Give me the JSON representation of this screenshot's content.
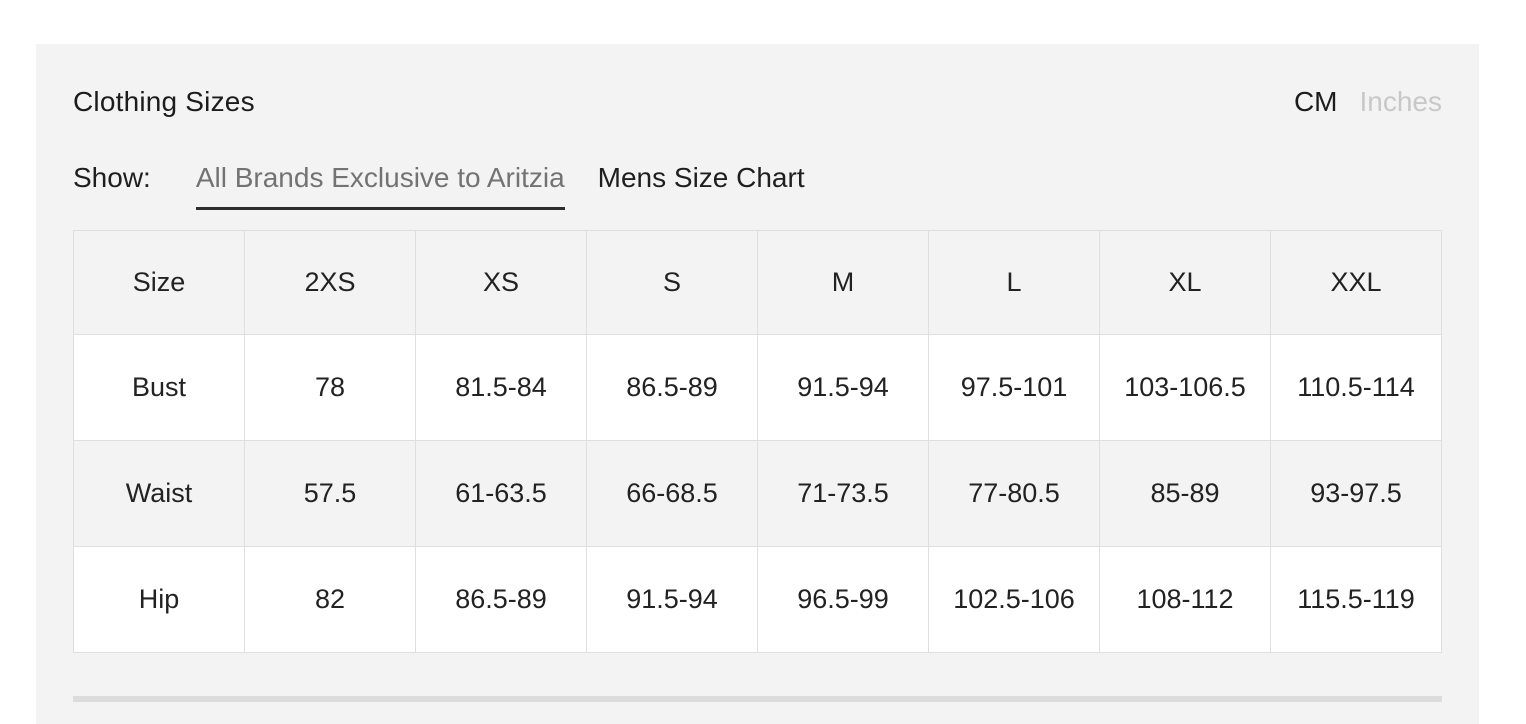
{
  "panel": {
    "title": "Clothing Sizes",
    "units": {
      "cm_label": "CM",
      "inches_label": "Inches",
      "selected": "CM"
    },
    "show_label": "Show:",
    "tabs": [
      {
        "label": "All Brands Exclusive to Aritzia",
        "active": true
      },
      {
        "label": "Mens Size Chart",
        "active": false
      }
    ]
  },
  "table": {
    "headers": [
      "Size",
      "2XS",
      "XS",
      "S",
      "M",
      "L",
      "XL",
      "XXL"
    ],
    "rows": [
      {
        "label": "Bust",
        "values": [
          "78",
          "81.5-84",
          "86.5-89",
          "91.5-94",
          "97.5-101",
          "103-106.5",
          "110.5-114"
        ]
      },
      {
        "label": "Waist",
        "values": [
          "57.5",
          "61-63.5",
          "66-68.5",
          "71-73.5",
          "77-80.5",
          "85-89",
          "93-97.5"
        ]
      },
      {
        "label": "Hip",
        "values": [
          "82",
          "86.5-89",
          "91.5-94",
          "96.5-99",
          "102.5-106",
          "108-112",
          "115.5-119"
        ]
      }
    ]
  },
  "colors": {
    "panel_bg": "#f3f3f3",
    "cell_white": "#ffffff",
    "border": "#dfdfdf",
    "text": "#1f1f1f",
    "active_tab_text": "#737373",
    "active_tab_underline": "#2d2d2d",
    "inactive_unit": "#c8c8c8",
    "next_table_edge": "#dcdcdc"
  }
}
